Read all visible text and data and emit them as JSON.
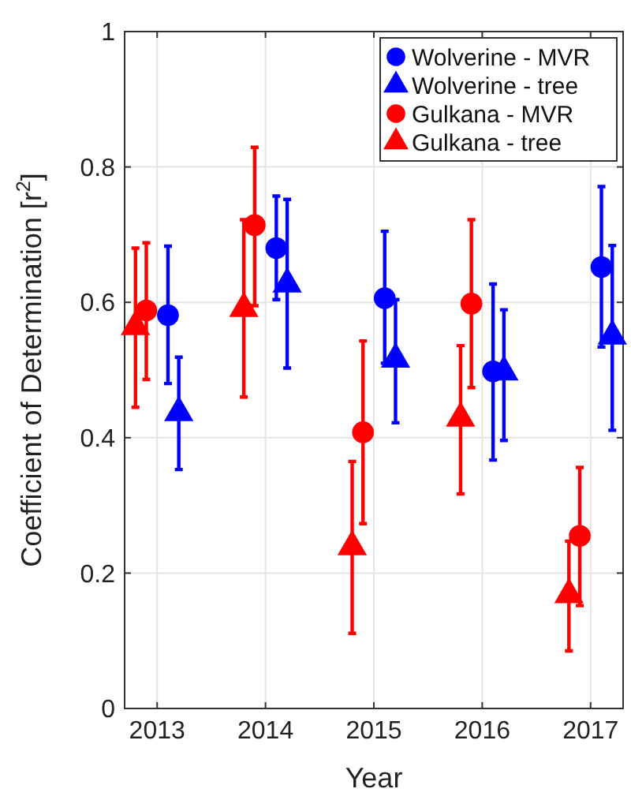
{
  "chart_data": {
    "type": "scatter",
    "xlabel": "Year",
    "ylabel": "Coefficient of Determination [r$^{2}$]",
    "xlim": [
      2012.7,
      2017.3
    ],
    "xticks": [
      2013,
      2014,
      2015,
      2016,
      2017
    ],
    "ylim": [
      0,
      1
    ],
    "yticks": [
      0,
      0.2,
      0.4,
      0.6,
      0.8,
      1
    ],
    "grid": true,
    "legend": "top right",
    "series": [
      {
        "name": "Wolverine - MVR",
        "color": "#0000ff",
        "marker": "circle",
        "x": [
          2013.1,
          2014.1,
          2015.1,
          2016.1,
          2017.1
        ],
        "values": [
          0.581,
          0.68,
          0.606,
          0.498,
          0.652
        ],
        "errors": [
          [
            0.48,
            0.683
          ],
          [
            0.604,
            0.757
          ],
          [
            0.51,
            0.705
          ],
          [
            0.367,
            0.627
          ],
          [
            0.534,
            0.771
          ]
        ]
      },
      {
        "name": "Wolverine - tree",
        "color": "#0000ff",
        "marker": "triangle",
        "x": [
          2013.2,
          2014.2,
          2015.2,
          2016.2,
          2017.2
        ],
        "values": [
          0.437,
          0.627,
          0.516,
          0.497,
          0.55
        ],
        "errors": [
          [
            0.353,
            0.519
          ],
          [
            0.503,
            0.752
          ],
          [
            0.422,
            0.604
          ],
          [
            0.396,
            0.589
          ],
          [
            0.411,
            0.684
          ]
        ]
      },
      {
        "name": "Gulkana - MVR",
        "color": "#ff0000",
        "marker": "circle",
        "x": [
          2012.9,
          2013.9,
          2014.9,
          2015.9,
          2016.9
        ],
        "values": [
          0.588,
          0.714,
          0.408,
          0.598,
          0.255
        ],
        "errors": [
          [
            0.486,
            0.688
          ],
          [
            0.595,
            0.829
          ],
          [
            0.273,
            0.543
          ],
          [
            0.474,
            0.722
          ],
          [
            0.152,
            0.356
          ]
        ]
      },
      {
        "name": "Gulkana - tree",
        "color": "#ff0000",
        "marker": "triangle",
        "x": [
          2012.8,
          2013.8,
          2014.8,
          2015.8,
          2016.8
        ],
        "values": [
          0.564,
          0.591,
          0.239,
          0.429,
          0.168
        ],
        "errors": [
          [
            0.445,
            0.68
          ],
          [
            0.46,
            0.722
          ],
          [
            0.111,
            0.365
          ],
          [
            0.317,
            0.536
          ],
          [
            0.085,
            0.247
          ]
        ]
      }
    ]
  }
}
